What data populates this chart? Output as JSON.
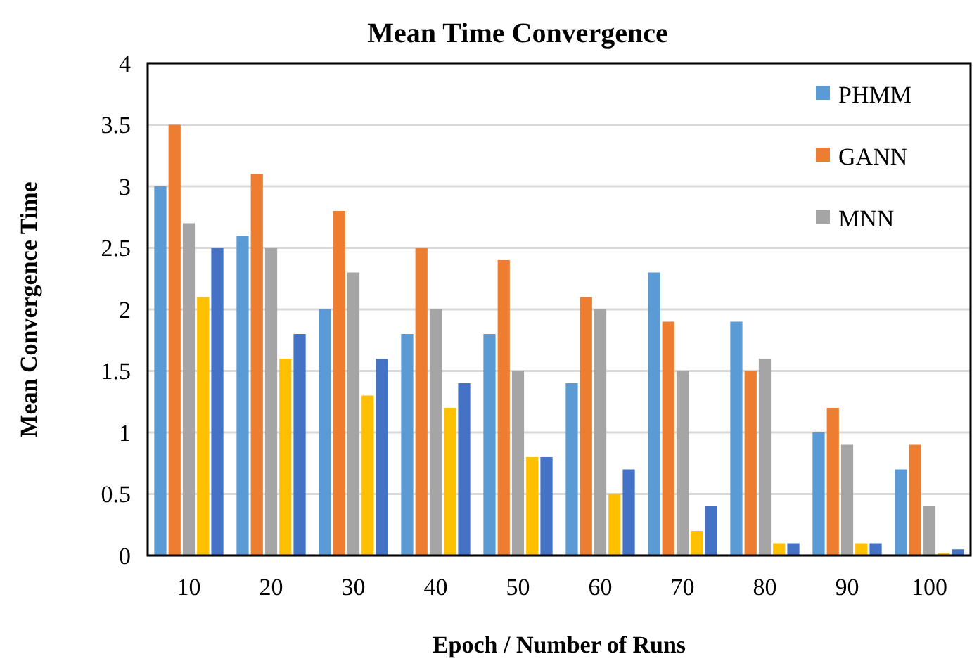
{
  "chart_data": {
    "type": "bar",
    "title": "Mean Time Convergence",
    "xlabel": "Epoch / Number of Runs",
    "ylabel": "Mean Convergence Time",
    "categories": [
      "10",
      "20",
      "30",
      "40",
      "50",
      "60",
      "70",
      "80",
      "90",
      "100"
    ],
    "series": [
      {
        "name": "PHMM",
        "color": "#5b9bd5",
        "values": [
          3,
          2.6,
          2,
          1.8,
          1.8,
          1.4,
          2.3,
          1.9,
          1,
          0.7
        ]
      },
      {
        "name": "GANN",
        "color": "#ed7d31",
        "values": [
          3.5,
          3.1,
          2.8,
          2.5,
          2.4,
          2.1,
          1.9,
          1.5,
          1.2,
          0.9
        ]
      },
      {
        "name": "MNN",
        "color": "#a5a5a5",
        "values": [
          2.7,
          2.5,
          2.3,
          2,
          1.5,
          2,
          1.5,
          1.6,
          0.9,
          0.4
        ]
      },
      {
        "color": "#ffc000",
        "values": [
          2.1,
          1.6,
          1.3,
          1.2,
          0.8,
          0.5,
          0.2,
          0.1,
          0.1,
          0.02
        ]
      },
      {
        "color": "#4472c4",
        "values": [
          2.5,
          1.8,
          1.6,
          1.4,
          0.8,
          0.7,
          0.4,
          0.1,
          0.1,
          0.05
        ]
      }
    ],
    "ylim": [
      0,
      4
    ],
    "yticks": [
      0,
      0.5,
      1,
      1.5,
      2,
      2.5,
      3,
      3.5,
      4
    ],
    "grid": "y",
    "legend": "top right"
  }
}
